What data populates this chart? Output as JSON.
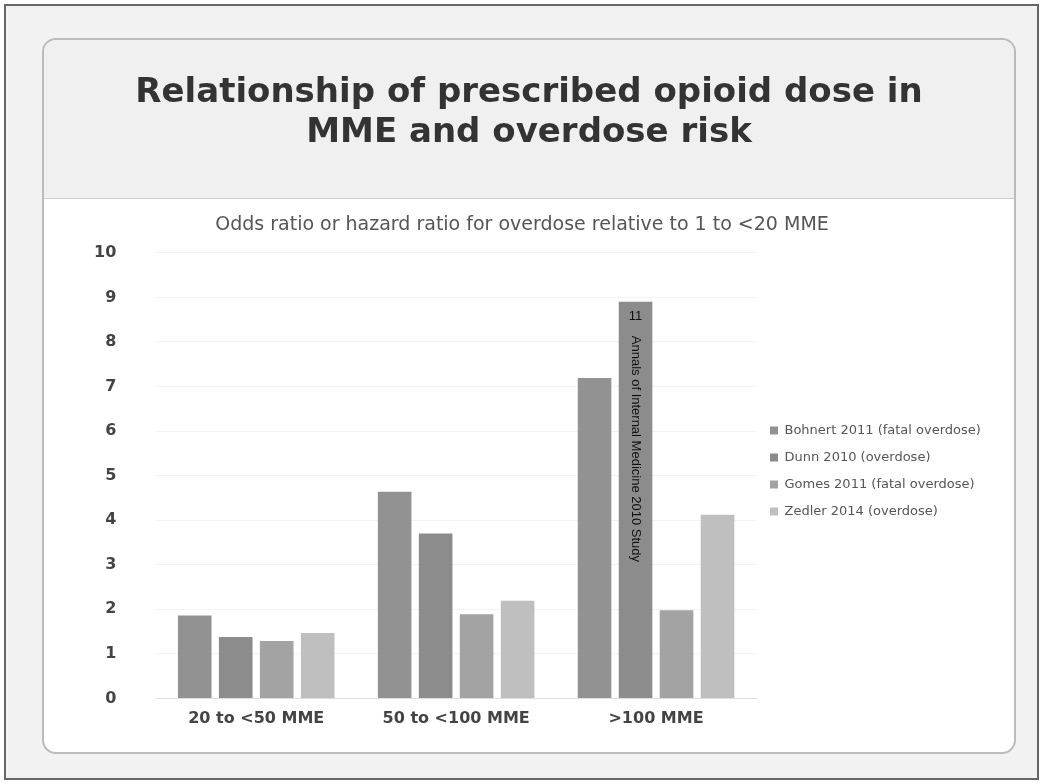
{
  "chart_data": {
    "type": "bar",
    "title": "Relationship of prescribed opioid dose in MME and overdose risk",
    "subtitle": "Odds ratio or hazard ratio for overdose relative to 1 to <20 MME",
    "categories": [
      "20 to <50 MME",
      "50 to <100 MME",
      ">100 MME"
    ],
    "series": [
      {
        "name": "Bohnert 2011 (fatal overdose)",
        "color": "#929292",
        "values": [
          1.86,
          4.64,
          7.19
        ]
      },
      {
        "name": "Dunn 2010 (overdose)",
        "color": "#8c8c8c",
        "values": [
          1.38,
          3.7,
          8.9
        ]
      },
      {
        "name": "Gomes 2011 (fatal overdose)",
        "color": "#a3a3a3",
        "values": [
          1.29,
          1.89,
          1.98
        ]
      },
      {
        "name": "Zedler 2014 (overdose)",
        "color": "#bfbfbf",
        "values": [
          1.47,
          2.19,
          4.12
        ]
      }
    ],
    "annotations": [
      "11",
      "Annals of Internal Medicine 2010 Study"
    ],
    "ylim": [
      0,
      10
    ],
    "yticks": [
      0,
      1,
      2,
      3,
      4,
      5,
      6,
      7,
      8,
      9,
      10
    ],
    "grid": "y",
    "legend": "right"
  }
}
